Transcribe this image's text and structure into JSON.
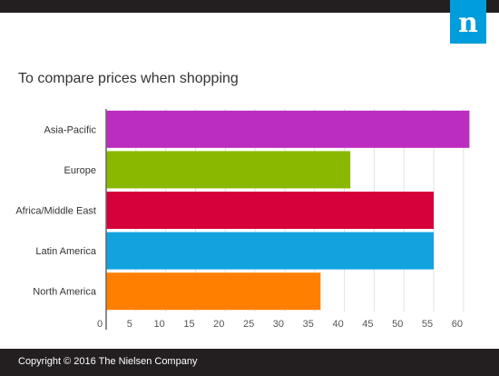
{
  "brand": {
    "logo_text": "n",
    "logo_color": "#009ddc",
    "bar_color": "#231f20"
  },
  "footer": {
    "copyright": "Copyright © 2016 The Nielsen Company"
  },
  "chart_data": {
    "type": "bar",
    "orientation": "horizontal",
    "title": "To compare prices when shopping",
    "categories": [
      "Asia-Pacific",
      "Europe",
      "Africa/Middle East",
      "Latin America",
      "North America"
    ],
    "values": [
      61,
      41,
      55,
      55,
      36
    ],
    "colors": [
      "#bb2cc0",
      "#8ab800",
      "#d6003a",
      "#12a3df",
      "#ff8000"
    ],
    "xlim": [
      0,
      62
    ],
    "xticks": [
      0,
      5,
      10,
      15,
      20,
      25,
      30,
      35,
      40,
      45,
      50,
      55,
      60
    ],
    "grid": true,
    "legend": "none"
  }
}
